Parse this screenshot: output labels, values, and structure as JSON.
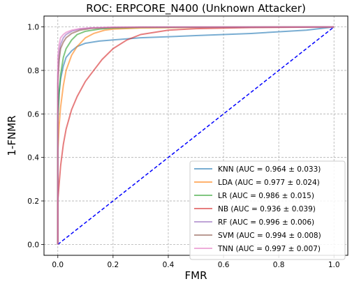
{
  "chart_data": {
    "type": "line",
    "title": "ROC: ERPCORE_N400 (Unknown Attacker)",
    "xlabel": "FMR",
    "ylabel": "1-FNMR",
    "xlim": [
      -0.05,
      1.05
    ],
    "ylim": [
      -0.05,
      1.05
    ],
    "xticks": [
      0.0,
      0.2,
      0.4,
      0.6,
      0.8,
      1.0
    ],
    "yticks": [
      0.0,
      0.2,
      0.4,
      0.6,
      0.8,
      1.0
    ],
    "xtick_labels": [
      "0.0",
      "0.2",
      "0.4",
      "0.6",
      "0.8",
      "1.0"
    ],
    "ytick_labels": [
      "0.0",
      "0.2",
      "0.4",
      "0.6",
      "0.8",
      "1.0"
    ],
    "grid": true,
    "legend_position": "lower-right",
    "series": [
      {
        "name": "KNN (AUC = 0.964 ± 0.033)",
        "color": "#1f77b4",
        "x": [
          0,
          0,
          0.005,
          0.01,
          0.02,
          0.03,
          0.05,
          0.07,
          0.1,
          0.15,
          0.2,
          0.3,
          0.5,
          0.7,
          0.9,
          1.0
        ],
        "y": [
          0,
          0.6,
          0.7,
          0.76,
          0.82,
          0.86,
          0.89,
          0.91,
          0.925,
          0.935,
          0.94,
          0.95,
          0.96,
          0.97,
          0.985,
          1.0
        ]
      },
      {
        "name": "LDA (AUC = 0.977 ± 0.024)",
        "color": "#ff7f0e",
        "x": [
          0,
          0,
          0.005,
          0.01,
          0.02,
          0.03,
          0.05,
          0.07,
          0.1,
          0.13,
          0.17,
          0.2,
          0.3,
          0.5,
          1.0
        ],
        "y": [
          0,
          0.42,
          0.55,
          0.63,
          0.73,
          0.8,
          0.87,
          0.91,
          0.95,
          0.97,
          0.985,
          0.99,
          0.995,
          0.998,
          1.0
        ]
      },
      {
        "name": "LR (AUC = 0.986 ± 0.015)",
        "color": "#2ca02c",
        "x": [
          0,
          0,
          0.005,
          0.01,
          0.02,
          0.03,
          0.05,
          0.07,
          0.1,
          0.15,
          0.2,
          0.3,
          1.0
        ],
        "y": [
          0,
          0.55,
          0.7,
          0.78,
          0.86,
          0.9,
          0.94,
          0.965,
          0.98,
          0.99,
          0.995,
          0.998,
          1.0
        ]
      },
      {
        "name": "NB (AUC = 0.936 ± 0.039)",
        "color": "#d62728",
        "x": [
          0,
          0,
          0.005,
          0.01,
          0.02,
          0.03,
          0.05,
          0.07,
          0.1,
          0.13,
          0.16,
          0.2,
          0.25,
          0.3,
          0.4,
          0.5,
          0.7,
          1.0
        ],
        "y": [
          0,
          0.2,
          0.28,
          0.36,
          0.46,
          0.53,
          0.62,
          0.68,
          0.75,
          0.8,
          0.85,
          0.9,
          0.94,
          0.965,
          0.985,
          0.992,
          0.997,
          1.0
        ]
      },
      {
        "name": "RF (AUC = 0.996 ± 0.006)",
        "color": "#9467bd",
        "x": [
          0,
          0,
          0.005,
          0.01,
          0.02,
          0.03,
          0.05,
          0.08,
          0.12,
          0.2,
          0.3,
          1.0
        ],
        "y": [
          0,
          0.78,
          0.88,
          0.92,
          0.95,
          0.965,
          0.98,
          0.99,
          0.995,
          0.998,
          0.999,
          1.0
        ]
      },
      {
        "name": "SVM (AUC = 0.994 ± 0.008)",
        "color": "#8c564b",
        "x": [
          0,
          0,
          0.005,
          0.01,
          0.02,
          0.03,
          0.05,
          0.08,
          0.12,
          0.2,
          0.3,
          1.0
        ],
        "y": [
          0,
          0.74,
          0.85,
          0.9,
          0.93,
          0.95,
          0.97,
          0.985,
          0.993,
          0.997,
          0.999,
          1.0
        ]
      },
      {
        "name": "TNN (AUC = 0.997 ± 0.007)",
        "color": "#e377c2",
        "x": [
          0,
          0,
          0.005,
          0.01,
          0.02,
          0.03,
          0.05,
          0.08,
          0.12,
          0.2,
          1.0
        ],
        "y": [
          0,
          0.86,
          0.92,
          0.95,
          0.965,
          0.975,
          0.985,
          0.992,
          0.996,
          0.999,
          1.0
        ]
      }
    ],
    "reference_line": {
      "x": [
        0,
        1
      ],
      "y": [
        0,
        1
      ],
      "color": "#0000ff",
      "style": "dashed"
    }
  }
}
